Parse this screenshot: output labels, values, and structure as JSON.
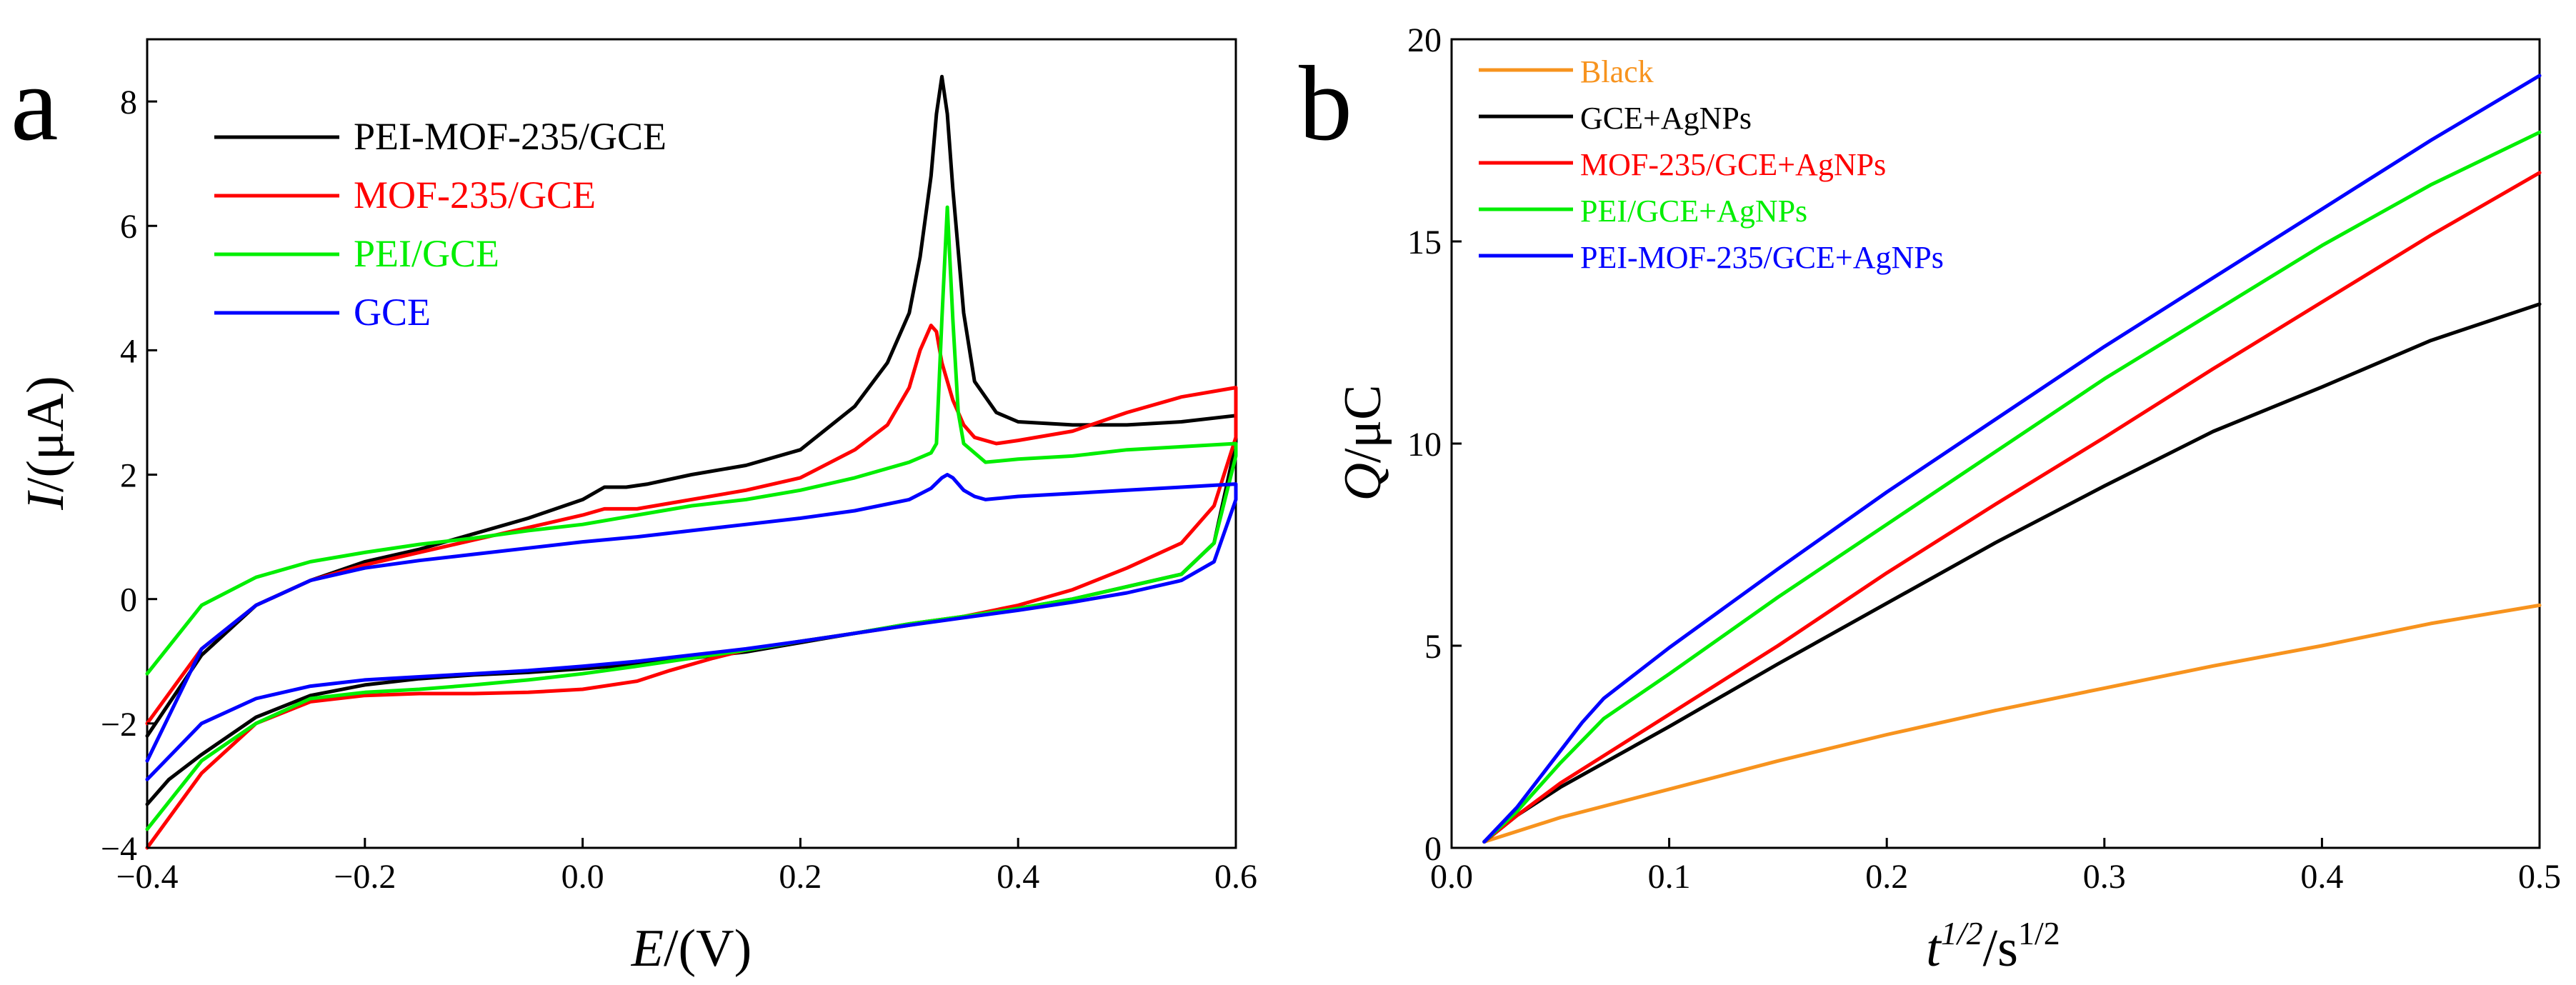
{
  "chart_data": [
    {
      "panel": "a",
      "type": "line",
      "title": "",
      "xlabel_main": "E",
      "xlabel_unit": "/(V)",
      "ylabel_main": "I",
      "ylabel_unit": "/(μA)",
      "xlim": [
        -0.4,
        0.6
      ],
      "ylim": [
        -4,
        9
      ],
      "xticks": [
        -0.4,
        -0.2,
        0.0,
        0.2,
        0.4,
        0.6
      ],
      "xtick_labels": [
        "−0.4",
        "−0.2",
        "0.0",
        "0.2",
        "0.4",
        "0.6"
      ],
      "yticks": [
        -4,
        -2,
        0,
        2,
        4,
        6,
        8
      ],
      "ytick_labels": [
        "−4",
        "−2",
        "0",
        "2",
        "4",
        "6",
        "8"
      ],
      "legend": "top-left",
      "grid": false,
      "series": [
        {
          "name": "PEI-MOF-235/GCE",
          "color": "#000000",
          "x": [
            -0.4,
            -0.35,
            -0.3,
            -0.25,
            -0.2,
            -0.15,
            -0.1,
            -0.05,
            0.0,
            0.02,
            0.04,
            0.06,
            0.1,
            0.15,
            0.2,
            0.25,
            0.28,
            0.3,
            0.31,
            0.32,
            0.325,
            0.33,
            0.335,
            0.34,
            0.35,
            0.36,
            0.38,
            0.4,
            0.45,
            0.5,
            0.55,
            0.6,
            0.6,
            0.58,
            0.55,
            0.5,
            0.45,
            0.4,
            0.35,
            0.3,
            0.25,
            0.2,
            0.15,
            0.1,
            0.05,
            0.0,
            -0.05,
            -0.1,
            -0.15,
            -0.2,
            -0.25,
            -0.3,
            -0.35,
            -0.38,
            -0.4
          ],
          "y": [
            -2.2,
            -0.9,
            -0.1,
            0.3,
            0.6,
            0.8,
            1.05,
            1.3,
            1.6,
            1.8,
            1.8,
            1.85,
            2.0,
            2.15,
            2.4,
            3.1,
            3.8,
            4.6,
            5.5,
            6.8,
            7.8,
            8.4,
            7.8,
            6.6,
            4.6,
            3.5,
            3.0,
            2.85,
            2.8,
            2.8,
            2.85,
            2.95,
            2.5,
            0.9,
            0.4,
            0.2,
            0.0,
            -0.15,
            -0.28,
            -0.4,
            -0.55,
            -0.7,
            -0.85,
            -0.95,
            -1.05,
            -1.12,
            -1.18,
            -1.22,
            -1.28,
            -1.38,
            -1.55,
            -1.9,
            -2.5,
            -2.9,
            -3.3
          ]
        },
        {
          "name": "MOF-235/GCE",
          "color": "#ff0000",
          "x": [
            -0.4,
            -0.35,
            -0.3,
            -0.25,
            -0.2,
            -0.15,
            -0.1,
            -0.05,
            0.0,
            0.02,
            0.05,
            0.1,
            0.15,
            0.2,
            0.25,
            0.28,
            0.3,
            0.31,
            0.32,
            0.325,
            0.33,
            0.34,
            0.35,
            0.36,
            0.38,
            0.4,
            0.45,
            0.5,
            0.55,
            0.6,
            0.6,
            0.58,
            0.55,
            0.5,
            0.45,
            0.4,
            0.35,
            0.3,
            0.25,
            0.2,
            0.15,
            0.12,
            0.08,
            0.05,
            0.0,
            -0.05,
            -0.1,
            -0.15,
            -0.2,
            -0.25,
            -0.3,
            -0.35,
            -0.4
          ],
          "y": [
            -2.0,
            -0.8,
            -0.1,
            0.3,
            0.55,
            0.75,
            0.95,
            1.15,
            1.35,
            1.45,
            1.45,
            1.6,
            1.75,
            1.95,
            2.4,
            2.8,
            3.4,
            4.0,
            4.4,
            4.3,
            3.8,
            3.2,
            2.8,
            2.6,
            2.5,
            2.55,
            2.7,
            3.0,
            3.25,
            3.4,
            2.6,
            1.5,
            0.9,
            0.5,
            0.15,
            -0.1,
            -0.28,
            -0.42,
            -0.55,
            -0.68,
            -0.82,
            -0.95,
            -1.15,
            -1.32,
            -1.45,
            -1.5,
            -1.52,
            -1.52,
            -1.55,
            -1.65,
            -2.0,
            -2.8,
            -4.0
          ]
        },
        {
          "name": "PEI/GCE",
          "color": "#00ee00",
          "x": [
            -0.4,
            -0.35,
            -0.3,
            -0.25,
            -0.2,
            -0.15,
            -0.1,
            -0.05,
            0.0,
            0.05,
            0.1,
            0.15,
            0.2,
            0.25,
            0.3,
            0.32,
            0.325,
            0.33,
            0.335,
            0.34,
            0.345,
            0.35,
            0.37,
            0.4,
            0.45,
            0.5,
            0.55,
            0.6,
            0.6,
            0.58,
            0.55,
            0.5,
            0.45,
            0.4,
            0.35,
            0.3,
            0.25,
            0.2,
            0.15,
            0.1,
            0.05,
            0.0,
            -0.05,
            -0.1,
            -0.15,
            -0.2,
            -0.25,
            -0.3,
            -0.35,
            -0.4
          ],
          "y": [
            -1.2,
            -0.1,
            0.35,
            0.6,
            0.75,
            0.88,
            0.98,
            1.1,
            1.2,
            1.35,
            1.5,
            1.6,
            1.75,
            1.95,
            2.2,
            2.35,
            2.5,
            4.5,
            6.3,
            4.5,
            3.0,
            2.5,
            2.2,
            2.25,
            2.3,
            2.4,
            2.45,
            2.5,
            2.3,
            0.9,
            0.4,
            0.2,
            0.0,
            -0.15,
            -0.28,
            -0.4,
            -0.55,
            -0.68,
            -0.82,
            -0.95,
            -1.08,
            -1.2,
            -1.3,
            -1.38,
            -1.45,
            -1.5,
            -1.6,
            -2.0,
            -2.6,
            -3.7
          ]
        },
        {
          "name": "GCE",
          "color": "#0000ff",
          "x": [
            -0.4,
            -0.35,
            -0.3,
            -0.25,
            -0.2,
            -0.15,
            -0.1,
            -0.05,
            0.0,
            0.05,
            0.1,
            0.15,
            0.2,
            0.25,
            0.3,
            0.32,
            0.33,
            0.335,
            0.34,
            0.35,
            0.36,
            0.37,
            0.4,
            0.45,
            0.5,
            0.55,
            0.6,
            0.6,
            0.58,
            0.55,
            0.5,
            0.45,
            0.4,
            0.35,
            0.3,
            0.25,
            0.2,
            0.15,
            0.1,
            0.05,
            0.0,
            -0.05,
            -0.1,
            -0.15,
            -0.2,
            -0.25,
            -0.3,
            -0.35,
            -0.4
          ],
          "y": [
            -2.6,
            -0.8,
            -0.1,
            0.3,
            0.5,
            0.62,
            0.72,
            0.82,
            0.92,
            1.0,
            1.1,
            1.2,
            1.3,
            1.42,
            1.6,
            1.78,
            1.95,
            2.0,
            1.95,
            1.75,
            1.65,
            1.6,
            1.65,
            1.7,
            1.75,
            1.8,
            1.85,
            1.6,
            0.6,
            0.3,
            0.1,
            -0.05,
            -0.18,
            -0.3,
            -0.42,
            -0.55,
            -0.68,
            -0.8,
            -0.9,
            -1.0,
            -1.08,
            -1.15,
            -1.2,
            -1.25,
            -1.3,
            -1.4,
            -1.6,
            -2.0,
            -2.9
          ]
        }
      ]
    },
    {
      "panel": "b",
      "type": "line",
      "title": "",
      "xlabel_main": "t",
      "xlabel_sup": "1/2",
      "xlabel_unit": "/s",
      "xlabel_unit_sup": "1/2",
      "ylabel_main": "Q",
      "ylabel_unit": "/μC",
      "xlim": [
        0.0,
        0.5
      ],
      "ylim": [
        0,
        20
      ],
      "xticks": [
        0.0,
        0.1,
        0.2,
        0.3,
        0.4,
        0.5
      ],
      "xtick_labels": [
        "0.0",
        "0.1",
        "0.2",
        "0.3",
        "0.4",
        "0.5"
      ],
      "yticks": [
        0,
        5,
        10,
        15,
        20
      ],
      "ytick_labels": [
        "0",
        "5",
        "10",
        "15",
        "20"
      ],
      "legend": "top-left",
      "grid": false,
      "series": [
        {
          "name": "Black",
          "color": "#f7931e",
          "x": [
            0.015,
            0.05,
            0.1,
            0.15,
            0.2,
            0.25,
            0.3,
            0.35,
            0.4,
            0.45,
            0.5
          ],
          "y": [
            0.15,
            0.75,
            1.45,
            2.15,
            2.8,
            3.4,
            3.95,
            4.5,
            5.0,
            5.55,
            6.0
          ]
        },
        {
          "name": "GCE+AgNPs",
          "color": "#000000",
          "x": [
            0.015,
            0.03,
            0.05,
            0.1,
            0.15,
            0.2,
            0.25,
            0.3,
            0.35,
            0.4,
            0.45,
            0.5
          ],
          "y": [
            0.15,
            0.8,
            1.5,
            3.0,
            4.55,
            6.05,
            7.55,
            8.95,
            10.3,
            11.4,
            12.55,
            13.45
          ]
        },
        {
          "name": "MOF-235/GCE+AgNPs",
          "color": "#ff0000",
          "x": [
            0.015,
            0.03,
            0.05,
            0.1,
            0.15,
            0.2,
            0.25,
            0.3,
            0.35,
            0.4,
            0.45,
            0.5
          ],
          "y": [
            0.15,
            0.8,
            1.6,
            3.3,
            5.0,
            6.8,
            8.5,
            10.15,
            11.85,
            13.5,
            15.15,
            16.7
          ]
        },
        {
          "name": "PEI/GCE+AgNPs",
          "color": "#00ee00",
          "x": [
            0.015,
            0.03,
            0.05,
            0.07,
            0.1,
            0.15,
            0.2,
            0.25,
            0.3,
            0.35,
            0.4,
            0.45,
            0.5
          ],
          "y": [
            0.15,
            0.9,
            2.1,
            3.2,
            4.3,
            6.2,
            8.0,
            9.8,
            11.6,
            13.25,
            14.9,
            16.4,
            17.7
          ]
        },
        {
          "name": "PEI-MOF-235/GCE+AgNPs",
          "color": "#0000ff",
          "x": [
            0.015,
            0.03,
            0.05,
            0.06,
            0.07,
            0.1,
            0.15,
            0.2,
            0.25,
            0.3,
            0.35,
            0.4,
            0.45,
            0.5
          ],
          "y": [
            0.15,
            1.0,
            2.4,
            3.1,
            3.7,
            4.95,
            6.9,
            8.8,
            10.6,
            12.4,
            14.1,
            15.8,
            17.5,
            19.1
          ]
        }
      ]
    }
  ]
}
